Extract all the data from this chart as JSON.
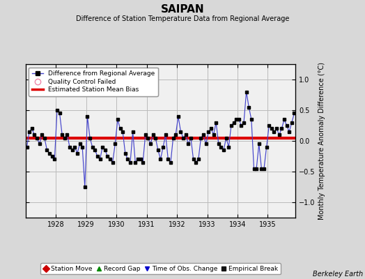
{
  "title": "SAIPAN",
  "subtitle": "Difference of Station Temperature Data from Regional Average",
  "ylabel": "Monthly Temperature Anomaly Difference (°C)",
  "credit": "Berkeley Earth",
  "bias_line": 0.05,
  "ylim": [
    -1.25,
    1.25
  ],
  "xlim": [
    1927.0,
    1935.92
  ],
  "background_color": "#d8d8d8",
  "plot_bg_color": "#f0f0f0",
  "grid_color": "#bbbbbb",
  "line_color": "#4444cc",
  "marker_color": "#000000",
  "bias_color": "#dd0000",
  "yticks": [
    -1,
    -0.5,
    0,
    0.5,
    1
  ],
  "xticks": [
    1928,
    1929,
    1930,
    1931,
    1932,
    1933,
    1934,
    1935
  ],
  "title_fontsize": 11,
  "subtitle_fontsize": 7,
  "tick_fontsize": 7,
  "ylabel_fontsize": 7,
  "legend_fontsize": 6.5,
  "credit_fontsize": 7,
  "data": [
    1927.042,
    -0.1,
    1927.125,
    0.15,
    1927.208,
    0.2,
    1927.292,
    0.1,
    1927.375,
    0.05,
    1927.458,
    -0.05,
    1927.542,
    0.1,
    1927.625,
    0.05,
    1927.708,
    -0.15,
    1927.792,
    -0.2,
    1927.875,
    -0.25,
    1927.958,
    -0.3,
    1928.042,
    0.5,
    1928.125,
    0.45,
    1928.208,
    0.1,
    1928.292,
    0.05,
    1928.375,
    0.1,
    1928.458,
    -0.1,
    1928.542,
    -0.15,
    1928.625,
    -0.1,
    1928.708,
    -0.2,
    1928.792,
    -0.05,
    1928.875,
    -0.1,
    1928.958,
    -0.75,
    1929.042,
    0.4,
    1929.125,
    0.05,
    1929.208,
    -0.1,
    1929.292,
    -0.15,
    1929.375,
    -0.25,
    1929.458,
    -0.3,
    1929.542,
    -0.1,
    1929.625,
    -0.15,
    1929.708,
    -0.25,
    1929.792,
    -0.3,
    1929.875,
    -0.35,
    1929.958,
    -0.05,
    1930.042,
    0.35,
    1930.125,
    0.2,
    1930.208,
    0.15,
    1930.292,
    -0.2,
    1930.375,
    -0.3,
    1930.458,
    -0.35,
    1930.542,
    0.15,
    1930.625,
    -0.35,
    1930.708,
    -0.3,
    1930.792,
    -0.3,
    1930.875,
    -0.35,
    1930.958,
    0.1,
    1931.042,
    0.05,
    1931.125,
    -0.05,
    1931.208,
    0.1,
    1931.292,
    0.05,
    1931.375,
    -0.15,
    1931.458,
    -0.3,
    1931.542,
    -0.1,
    1931.625,
    0.1,
    1931.708,
    -0.3,
    1931.792,
    -0.35,
    1931.875,
    0.05,
    1931.958,
    0.1,
    1932.042,
    0.4,
    1932.125,
    0.15,
    1932.208,
    0.05,
    1932.292,
    0.1,
    1932.375,
    -0.05,
    1932.458,
    0.05,
    1932.542,
    -0.3,
    1932.625,
    -0.35,
    1932.708,
    -0.3,
    1932.792,
    0.05,
    1932.875,
    0.1,
    1932.958,
    -0.05,
    1933.042,
    0.15,
    1933.125,
    0.2,
    1933.208,
    0.1,
    1933.292,
    0.3,
    1933.375,
    -0.05,
    1933.458,
    -0.1,
    1933.542,
    -0.15,
    1933.625,
    0.05,
    1933.708,
    -0.1,
    1933.792,
    0.25,
    1933.875,
    0.3,
    1933.958,
    0.35,
    1934.042,
    0.35,
    1934.125,
    0.25,
    1934.208,
    0.3,
    1934.292,
    0.8,
    1934.375,
    0.55,
    1934.458,
    0.35,
    1934.542,
    -0.45,
    1934.625,
    -0.45,
    1934.708,
    -0.05,
    1934.792,
    -0.45,
    1934.875,
    -0.45,
    1934.958,
    -0.1,
    1935.042,
    0.25,
    1935.125,
    0.2,
    1935.208,
    0.15,
    1935.292,
    0.2,
    1935.375,
    0.1,
    1935.458,
    0.2,
    1935.542,
    0.35,
    1935.625,
    0.25,
    1935.708,
    0.15,
    1935.792,
    0.3,
    1935.875,
    0.45
  ]
}
